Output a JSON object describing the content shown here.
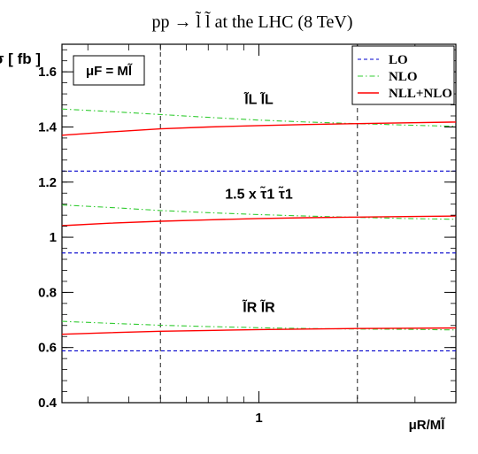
{
  "chart_data": {
    "type": "line",
    "title": "pp → l̃ l̃ at the LHC (8 TeV)",
    "xlabel": "μR/Ml̃",
    "ylabel": "σ [ fb ]",
    "x_scale": "log",
    "xlim": [
      0.25,
      4
    ],
    "ylim": [
      0.4,
      1.7
    ],
    "x_ticks": [
      {
        "value": 1,
        "label": "1"
      }
    ],
    "y_ticks": [
      {
        "value": 0.4,
        "label": "0.4"
      },
      {
        "value": 0.6,
        "label": "0.6"
      },
      {
        "value": 0.8,
        "label": "0.8"
      },
      {
        "value": 1.0,
        "label": "1"
      },
      {
        "value": 1.2,
        "label": "1.2"
      },
      {
        "value": 1.4,
        "label": "1.4"
      },
      {
        "value": 1.6,
        "label": "1.6"
      }
    ],
    "reference_lines_x": [
      0.5,
      2
    ],
    "scale_box": "μF = Ml̃",
    "legend": {
      "placement": "top-right",
      "entries": [
        {
          "name": "LO",
          "color": "#0000cc",
          "style": "dashed"
        },
        {
          "name": "NLO",
          "color": "#33cc33",
          "style": "dash-dot"
        },
        {
          "name": "NLL+NLO",
          "color": "#ff0000",
          "style": "solid"
        }
      ]
    },
    "x": [
      0.25,
      0.35,
      0.5,
      0.7,
      1.0,
      1.4,
      2.0,
      2.8,
      4.0
    ],
    "groups": [
      {
        "label": "l̃L l̃L",
        "series": [
          {
            "name": "LO",
            "values": [
              1.24,
              1.24,
              1.24,
              1.24,
              1.24,
              1.24,
              1.24,
              1.24,
              1.24
            ]
          },
          {
            "name": "NLO",
            "values": [
              1.465,
              1.456,
              1.445,
              1.435,
              1.425,
              1.418,
              1.412,
              1.407,
              1.402
            ]
          },
          {
            "name": "NLL+NLO",
            "values": [
              1.37,
              1.382,
              1.393,
              1.4,
              1.405,
              1.409,
              1.412,
              1.415,
              1.418
            ]
          }
        ]
      },
      {
        "label": "1.5 x τ̃1 τ̃1",
        "series": [
          {
            "name": "LO",
            "values": [
              0.943,
              0.943,
              0.943,
              0.943,
              0.943,
              0.943,
              0.943,
              0.943,
              0.943
            ]
          },
          {
            "name": "NLO",
            "values": [
              1.117,
              1.108,
              1.097,
              1.089,
              1.082,
              1.077,
              1.072,
              1.068,
              1.065
            ]
          },
          {
            "name": "NLL+NLO",
            "values": [
              1.042,
              1.051,
              1.058,
              1.063,
              1.068,
              1.071,
              1.073,
              1.075,
              1.077
            ]
          }
        ]
      },
      {
        "label": "l̃R l̃R",
        "series": [
          {
            "name": "LO",
            "values": [
              0.588,
              0.588,
              0.588,
              0.588,
              0.588,
              0.588,
              0.588,
              0.588,
              0.588
            ]
          },
          {
            "name": "NLO",
            "values": [
              0.695,
              0.688,
              0.681,
              0.676,
              0.672,
              0.669,
              0.667,
              0.666,
              0.664
            ]
          },
          {
            "name": "NLL+NLO",
            "values": [
              0.648,
              0.654,
              0.659,
              0.662,
              0.665,
              0.667,
              0.669,
              0.67,
              0.671
            ]
          }
        ]
      }
    ]
  }
}
